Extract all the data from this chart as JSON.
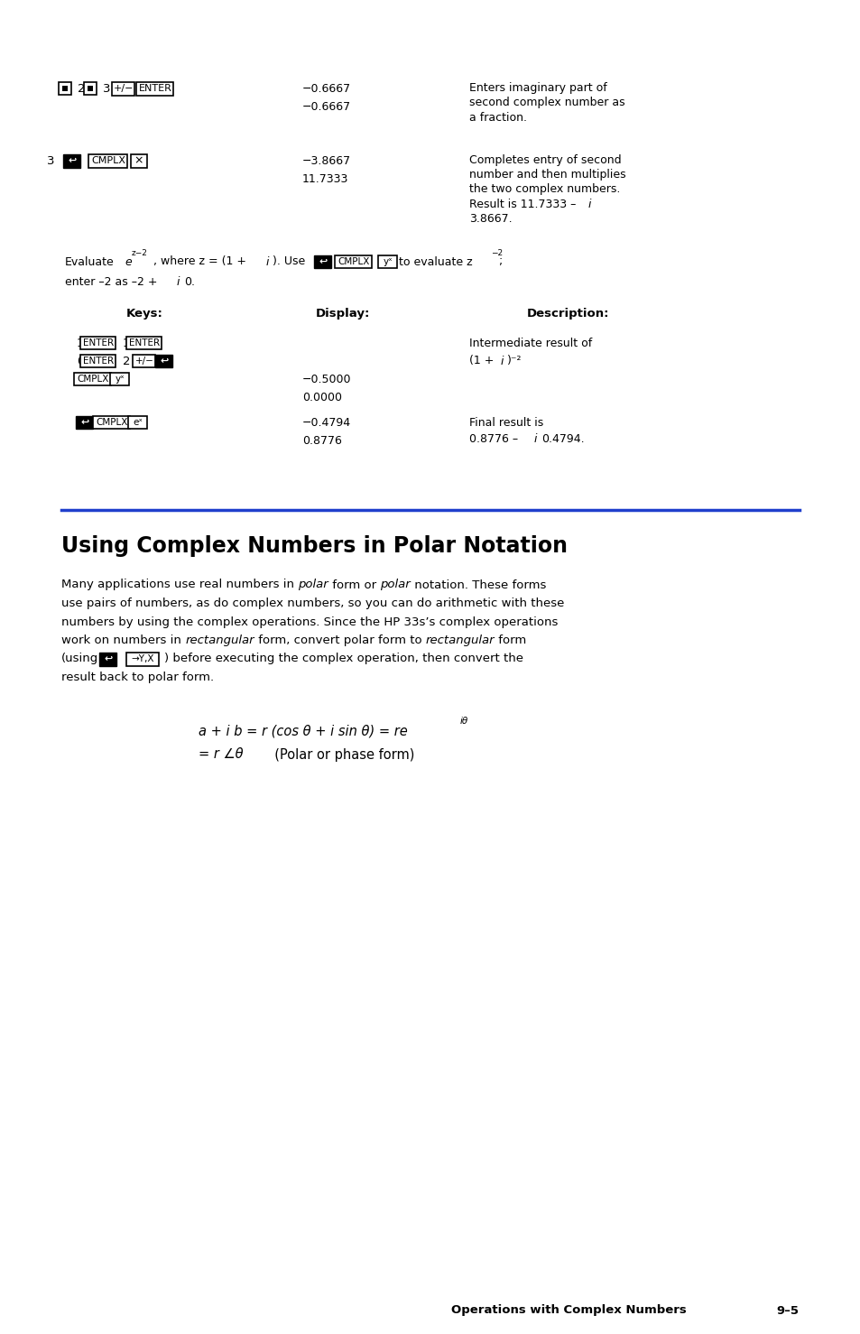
{
  "bg_color": "#ffffff",
  "section_title": "Using Complex Numbers in Polar Notation",
  "footer_left": "Operations with Complex Numbers",
  "footer_right": "9–5",
  "polar_paragraph": [
    [
      "Many applications use real numbers in ",
      "polar",
      " form or ",
      "polar",
      " notation. These forms"
    ],
    [
      "use pairs of numbers, as do complex numbers, so you can do arithmetic with these"
    ],
    [
      "numbers by using the complex operations. Since the HP 33s’s complex operations"
    ],
    [
      "work on numbers in ",
      "rectangular",
      " form, convert polar form to ",
      "rectangular",
      " form"
    ],
    [
      "result back to polar form."
    ]
  ]
}
